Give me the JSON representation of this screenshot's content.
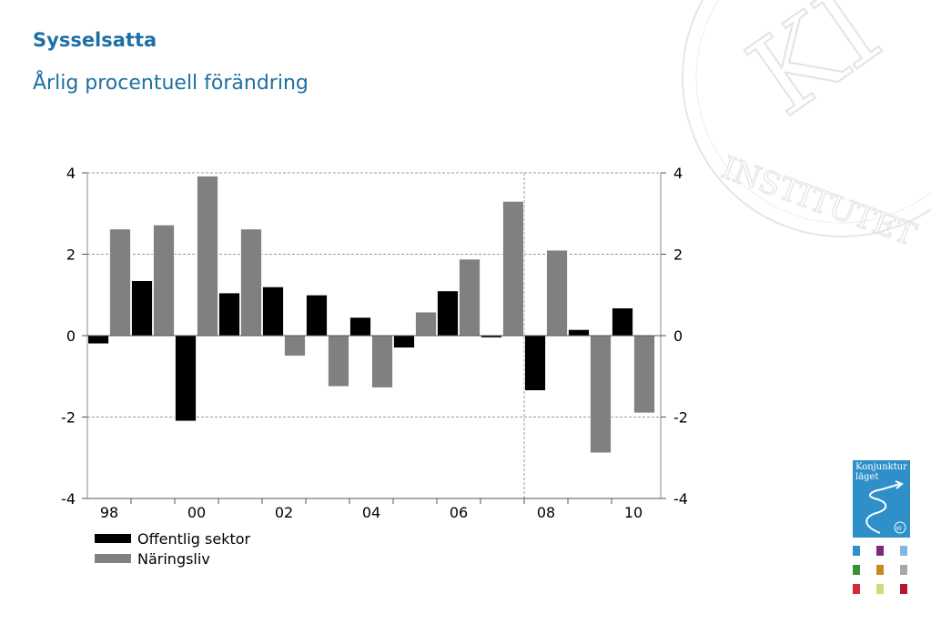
{
  "header": {
    "title": "Sysselsatta",
    "subtitle": "Årlig procentuell förändring"
  },
  "badge": {
    "line1": "Konjunktur",
    "line2": "läget",
    "seal_text": "KI"
  },
  "watermark": {
    "monogram": "KI",
    "ring_text": "INSTITUTET"
  },
  "swatches": [
    "#2e8fc9",
    "#7b2a7d",
    "#7fb7dd",
    "#3b8f3b",
    "#c58a1e",
    "#a8a8a8",
    "#d42a3a",
    "#c9e07a",
    "#b5182e"
  ],
  "chart_data": {
    "type": "bar",
    "title": "Sysselsatta",
    "subtitle": "Årlig procentuell förändring",
    "x_tick_labels": [
      "98",
      "00",
      "02",
      "04",
      "06",
      "08",
      "10"
    ],
    "periods": [
      "1998",
      "1999",
      "2000",
      "2001",
      "2002",
      "2003",
      "2004",
      "2005",
      "2006",
      "2007",
      "2008",
      "2009",
      "2010"
    ],
    "ylim": [
      -4,
      4
    ],
    "yticks": [
      "4",
      "2",
      "0",
      "-2",
      "-4"
    ],
    "grid": true,
    "y_axis_right": true,
    "legend_position": "bottom-left",
    "divider_after_period": "2007",
    "series": [
      {
        "name": "Offentlig sektor",
        "color": "#000000",
        "values": [
          -0.2,
          1.35,
          -2.1,
          1.05,
          1.2,
          1.0,
          0.45,
          -0.3,
          1.1,
          -0.05,
          -1.35,
          0.15,
          0.68
        ]
      },
      {
        "name": "Näringsliv",
        "color": "#808080",
        "values": [
          2.62,
          2.72,
          3.92,
          2.62,
          -0.5,
          -1.25,
          -1.28,
          0.58,
          1.88,
          3.3,
          2.1,
          -2.88,
          -1.9
        ]
      }
    ]
  }
}
